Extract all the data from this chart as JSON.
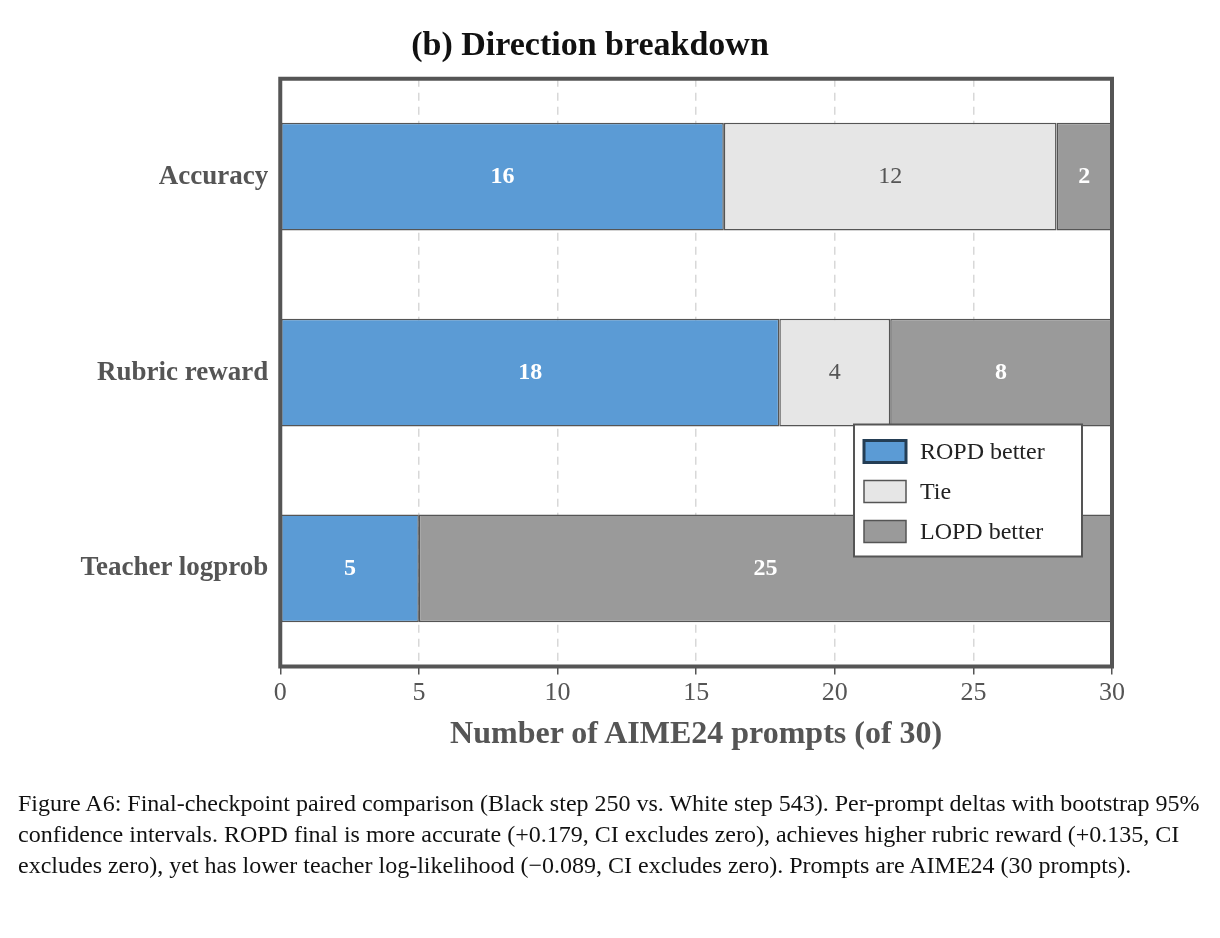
{
  "chart_data": {
    "type": "bar",
    "orientation": "horizontal",
    "stacked": true,
    "title": "(b) Direction breakdown",
    "xlabel": "Number of AIME24 prompts (of 30)",
    "categories": [
      "Accuracy",
      "Rubric reward",
      "Teacher logprob"
    ],
    "series": [
      {
        "name": "ROPD better",
        "color": "#5b9bd5",
        "values": [
          16,
          18,
          5
        ],
        "value_labels": [
          "16",
          "18",
          "5"
        ]
      },
      {
        "name": "Tie",
        "color": "#e6e6e6",
        "values": [
          12,
          4,
          0
        ],
        "value_labels": [
          "12",
          "4",
          null
        ]
      },
      {
        "name": "LOPD better",
        "color": "#9a9a9a",
        "values": [
          2,
          8,
          25
        ],
        "value_labels": [
          "2",
          "8",
          "25"
        ]
      }
    ],
    "xlim": [
      0,
      30
    ],
    "xticks": [
      0,
      5,
      10,
      15,
      20,
      25,
      30
    ],
    "grid": "x",
    "legend": "bottom right",
    "annotations": [
      "Figure A6: Final-checkpoint paired comparison (Black step 250 vs. White step 543). Per-prompt deltas with bootstrap 95% confidence intervals. ROPD final is more accurate (+0.179, CI excludes zero), achieves higher rubric reward (+0.135, CI excludes zero), yet has lower teacher log-likelihood (−0.089, CI excludes zero). Prompts are AIME24 (30 prompts)."
    ]
  }
}
